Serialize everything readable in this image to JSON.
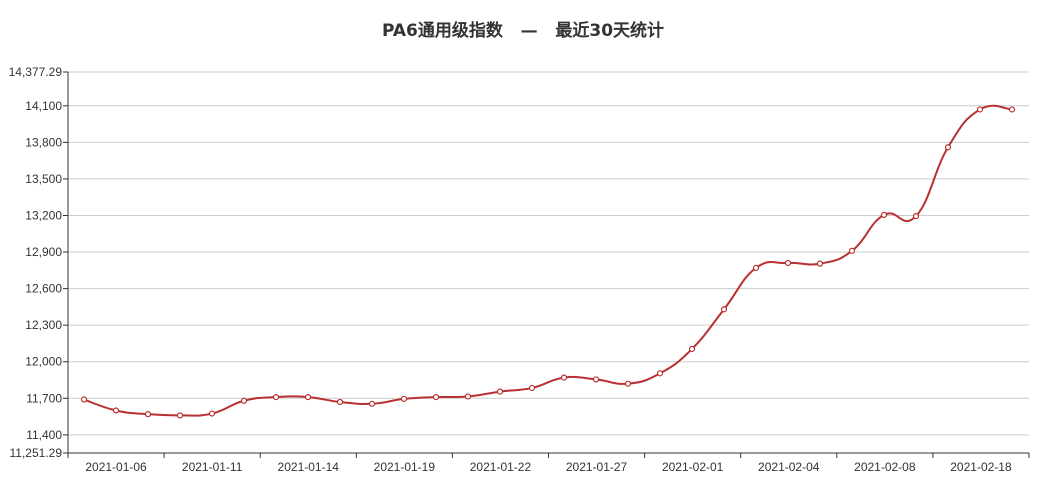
{
  "chart_data": {
    "type": "line",
    "title": "PA6通用级指数   —   最近30天统计",
    "xlabel": "",
    "ylabel": "",
    "ylim": [
      11251.29,
      14377.29
    ],
    "y_ticks": [
      11251.29,
      11400,
      11700,
      12000,
      12300,
      12600,
      12900,
      13200,
      13500,
      13800,
      14100,
      14377.29
    ],
    "y_tick_labels": [
      "11,251.29",
      "11,400",
      "11,700",
      "12,000",
      "12,300",
      "12,600",
      "12,900",
      "13,200",
      "13,500",
      "13,800",
      "14,100",
      "14,377.29"
    ],
    "x_tick_labels": [
      "2021-01-06",
      "2021-01-11",
      "2021-01-14",
      "2021-01-19",
      "2021-01-22",
      "2021-01-27",
      "2021-02-01",
      "2021-02-04",
      "2021-02-08",
      "2021-02-18"
    ],
    "grid": true,
    "series": [
      {
        "color": "#b83030",
        "values": [
          11690,
          11600,
          11570,
          11560,
          11575,
          11680,
          11710,
          11710,
          11670,
          11655,
          11695,
          11710,
          11715,
          11755,
          11785,
          11870,
          11855,
          11820,
          11905,
          12105,
          12430,
          12770,
          12810,
          12805,
          12910,
          13205,
          13195,
          13760,
          14070,
          14070
        ]
      }
    ]
  }
}
